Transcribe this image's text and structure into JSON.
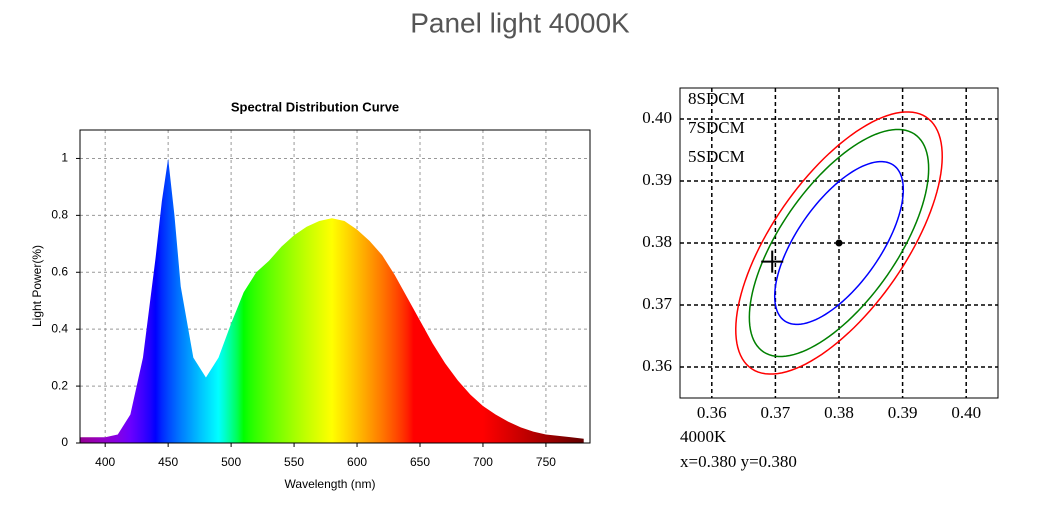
{
  "title": "Panel light 4000K",
  "chart_data": [
    {
      "type": "area",
      "title": "Spectral Distribution Curve",
      "x_label": "Wavelength  (nm)",
      "y_label": "Light Power(%)",
      "x": [
        380,
        390,
        400,
        410,
        420,
        430,
        440,
        445,
        450,
        455,
        460,
        470,
        480,
        490,
        500,
        510,
        520,
        530,
        540,
        550,
        560,
        570,
        580,
        590,
        600,
        610,
        620,
        630,
        640,
        650,
        660,
        670,
        680,
        690,
        700,
        710,
        720,
        730,
        740,
        750,
        760,
        770,
        780
      ],
      "values": [
        0.02,
        0.02,
        0.02,
        0.03,
        0.1,
        0.3,
        0.65,
        0.85,
        1.0,
        0.8,
        0.55,
        0.3,
        0.23,
        0.3,
        0.42,
        0.53,
        0.6,
        0.64,
        0.69,
        0.73,
        0.76,
        0.78,
        0.79,
        0.78,
        0.75,
        0.71,
        0.66,
        0.59,
        0.51,
        0.43,
        0.35,
        0.28,
        0.22,
        0.17,
        0.13,
        0.1,
        0.075,
        0.055,
        0.04,
        0.03,
        0.025,
        0.02,
        0.015
      ],
      "xlim": [
        380,
        785
      ],
      "ylim": [
        0,
        1.1
      ],
      "xticks": [
        400,
        450,
        500,
        550,
        600,
        650,
        700,
        750
      ],
      "yticks": [
        0,
        0.2,
        0.4,
        0.6,
        0.8,
        1
      ],
      "grid": true
    },
    {
      "type": "ellipse",
      "series": [
        {
          "name": "8SDCM",
          "color": "#ff0000",
          "cx": 0.38,
          "cy": 0.38,
          "a": 0.0245,
          "b": 0.0105,
          "angle": 56
        },
        {
          "name": "7SDCM",
          "color": "#008000",
          "cx": 0.38,
          "cy": 0.38,
          "a": 0.0212,
          "b": 0.0092,
          "angle": 56
        },
        {
          "name": "5SDCM",
          "color": "#0000ff",
          "cx": 0.38,
          "cy": 0.38,
          "a": 0.0152,
          "b": 0.0066,
          "angle": 56
        }
      ],
      "center": {
        "x": 0.38,
        "y": 0.38
      },
      "marker": {
        "x": 0.3695,
        "y": 0.377
      },
      "annotations": [
        "4000K",
        "x=0.380  y=0.380"
      ],
      "xlim": [
        0.355,
        0.405
      ],
      "ylim": [
        0.355,
        0.405
      ],
      "xticks": [
        0.36,
        0.37,
        0.38,
        0.39,
        {
          "value": 0.4,
          "label": "0.40"
        }
      ],
      "yticks": [
        0.36,
        0.37,
        0.38,
        0.39,
        {
          "value": 0.4,
          "label": "0.40"
        }
      ],
      "grid": true
    }
  ]
}
